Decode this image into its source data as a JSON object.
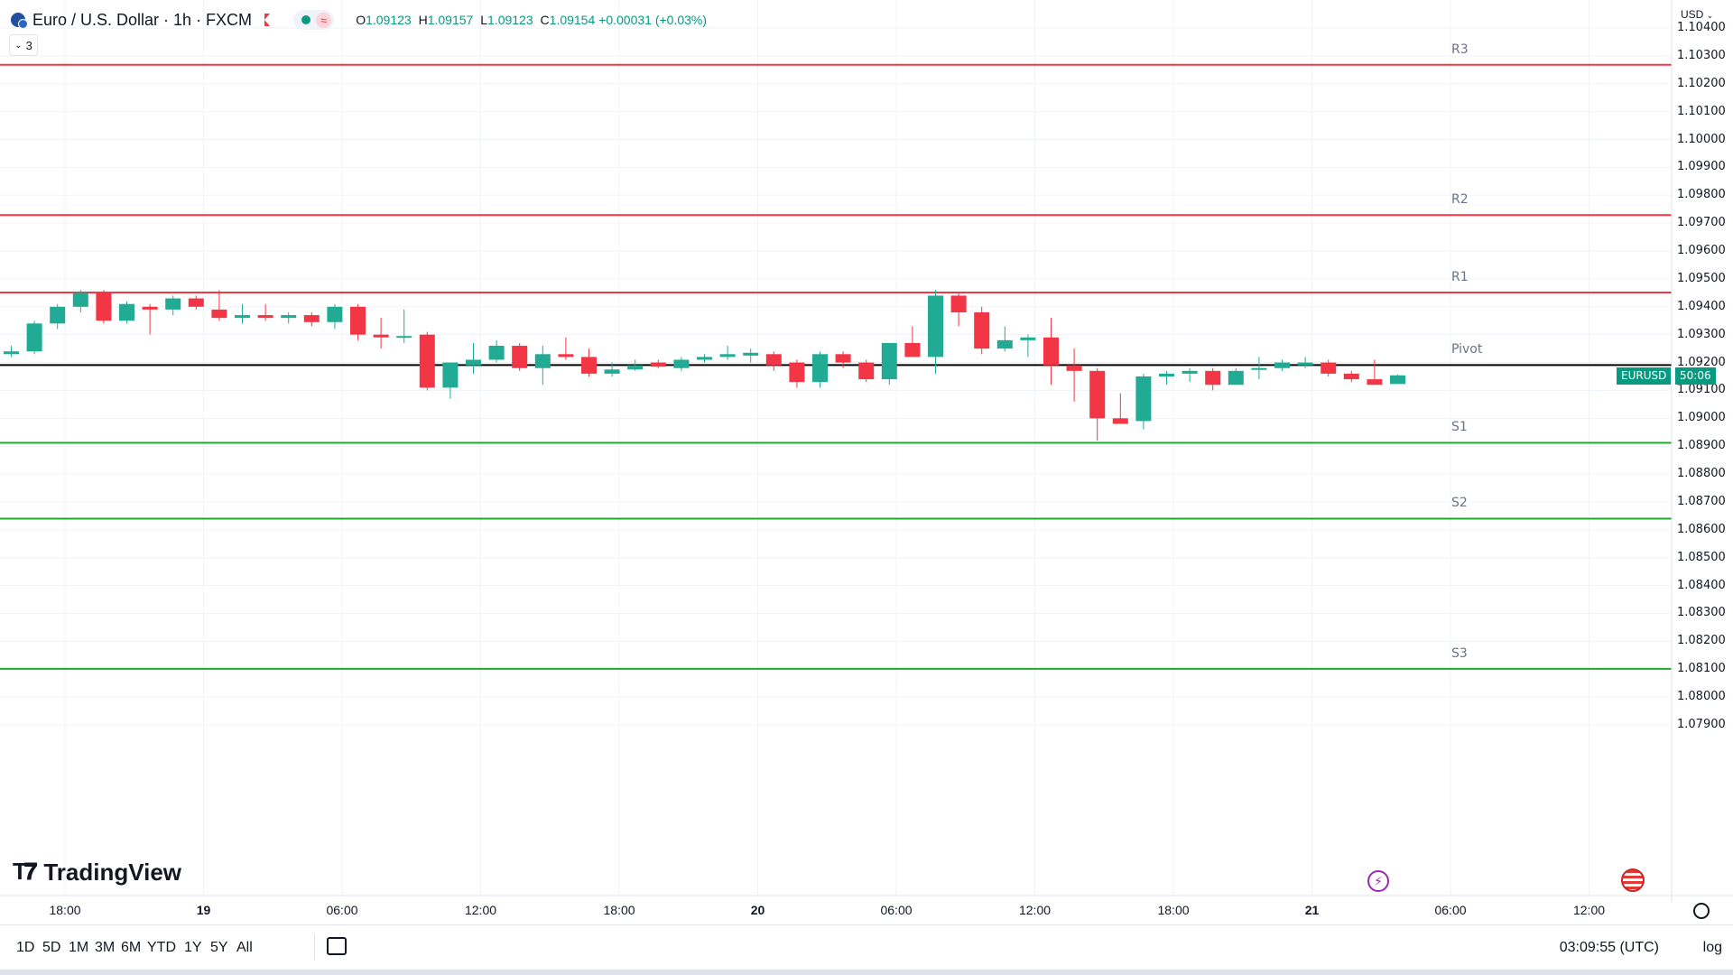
{
  "header": {
    "symbol_title": "Euro / U.S. Dollar · 1h · FXCM",
    "ohlc": {
      "open_label": "O",
      "open": "1.09123",
      "high_label": "H",
      "high": "1.09157",
      "low_label": "L",
      "low": "1.09123",
      "close_label": "C",
      "close": "1.09154",
      "change": "+0.00031 (+0.03%)"
    },
    "pill_wave": "≈",
    "indicator_toggle": "3"
  },
  "currency_label": "USD",
  "badge": {
    "symbol": "EURUSD",
    "countdown": "50:06",
    "color": "#089981"
  },
  "logo_text": "TradingView",
  "range_buttons": [
    "1D",
    "5D",
    "1M",
    "3M",
    "6M",
    "YTD",
    "1Y",
    "5Y",
    "All"
  ],
  "clock": "03:09:55 (UTC)",
  "log_label": "log",
  "colors": {
    "up": "#22ab94",
    "down": "#f23645",
    "resistance": "#f23645",
    "support": "#22ab2b",
    "pivot": "#000000"
  },
  "chart_data": {
    "type": "candlestick",
    "ylim": [
      1.079,
      1.1045
    ],
    "y_ticks": [
      "1.10400",
      "1.10300",
      "1.10200",
      "1.10100",
      "1.10000",
      "1.09900",
      "1.09800",
      "1.09700",
      "1.09600",
      "1.09500",
      "1.09400",
      "1.09300",
      "1.09200",
      "1.09100",
      "1.09000",
      "1.08900",
      "1.08800",
      "1.08700",
      "1.08600",
      "1.08500",
      "1.08400",
      "1.08300",
      "1.08200",
      "1.08100",
      "1.08000",
      "1.07900"
    ],
    "x_ticks": [
      {
        "label": "18:00",
        "bold": false
      },
      {
        "label": "19",
        "bold": true
      },
      {
        "label": "06:00",
        "bold": false
      },
      {
        "label": "12:00",
        "bold": false
      },
      {
        "label": "18:00",
        "bold": false
      },
      {
        "label": "20",
        "bold": true
      },
      {
        "label": "06:00",
        "bold": false
      },
      {
        "label": "12:00",
        "bold": false
      },
      {
        "label": "18:00",
        "bold": false
      },
      {
        "label": "21",
        "bold": true
      },
      {
        "label": "06:00",
        "bold": false
      },
      {
        "label": "12:00",
        "bold": false
      }
    ],
    "levels": [
      {
        "name": "R3",
        "value": 1.10268,
        "kind": "resistance"
      },
      {
        "name": "R2",
        "value": 1.09729,
        "kind": "resistance"
      },
      {
        "name": "R1",
        "value": 1.09451,
        "kind": "resistance"
      },
      {
        "name": "Pivot",
        "value": 1.09191,
        "kind": "pivot"
      },
      {
        "name": "S1",
        "value": 1.08912,
        "kind": "support"
      },
      {
        "name": "S2",
        "value": 1.0864,
        "kind": "support"
      },
      {
        "name": "S3",
        "value": 1.08101,
        "kind": "support"
      }
    ],
    "candles": [
      {
        "o": 1.0923,
        "h": 1.0926,
        "l": 1.0922,
        "c": 1.0924
      },
      {
        "o": 1.0924,
        "h": 1.0935,
        "l": 1.0923,
        "c": 1.0934
      },
      {
        "o": 1.0934,
        "h": 1.0941,
        "l": 1.0932,
        "c": 1.094
      },
      {
        "o": 1.094,
        "h": 1.0946,
        "l": 1.0938,
        "c": 1.0945
      },
      {
        "o": 1.0945,
        "h": 1.0946,
        "l": 1.0934,
        "c": 1.0935
      },
      {
        "o": 1.0935,
        "h": 1.0942,
        "l": 1.0934,
        "c": 1.0941
      },
      {
        "o": 1.094,
        "h": 1.0941,
        "l": 1.093,
        "c": 1.0939
      },
      {
        "o": 1.0939,
        "h": 1.0944,
        "l": 1.0937,
        "c": 1.0943
      },
      {
        "o": 1.0943,
        "h": 1.0944,
        "l": 1.0939,
        "c": 1.094
      },
      {
        "o": 1.0939,
        "h": 1.0946,
        "l": 1.0935,
        "c": 1.0936
      },
      {
        "o": 1.0936,
        "h": 1.0941,
        "l": 1.0934,
        "c": 1.0937
      },
      {
        "o": 1.0937,
        "h": 1.0941,
        "l": 1.0935,
        "c": 1.0936
      },
      {
        "o": 1.0936,
        "h": 1.0938,
        "l": 1.0934,
        "c": 1.0937
      },
      {
        "o": 1.0937,
        "h": 1.0938,
        "l": 1.0933,
        "c": 1.09345
      },
      {
        "o": 1.09345,
        "h": 1.0941,
        "l": 1.0932,
        "c": 1.094
      },
      {
        "o": 1.094,
        "h": 1.0941,
        "l": 1.0928,
        "c": 1.093
      },
      {
        "o": 1.093,
        "h": 1.0936,
        "l": 1.0925,
        "c": 1.0929
      },
      {
        "o": 1.0929,
        "h": 1.0939,
        "l": 1.0927,
        "c": 1.09295
      },
      {
        "o": 1.093,
        "h": 1.0931,
        "l": 1.091,
        "c": 1.0911
      },
      {
        "o": 1.0911,
        "h": 1.092,
        "l": 1.0907,
        "c": 1.092
      },
      {
        "o": 1.0919,
        "h": 1.0927,
        "l": 1.0916,
        "c": 1.0921
      },
      {
        "o": 1.0921,
        "h": 1.0928,
        "l": 1.092,
        "c": 1.0926
      },
      {
        "o": 1.0926,
        "h": 1.0927,
        "l": 1.0917,
        "c": 1.0918
      },
      {
        "o": 1.0918,
        "h": 1.0926,
        "l": 1.0912,
        "c": 1.0923
      },
      {
        "o": 1.0923,
        "h": 1.0929,
        "l": 1.0921,
        "c": 1.0922
      },
      {
        "o": 1.0922,
        "h": 1.0925,
        "l": 1.0915,
        "c": 1.0916
      },
      {
        "o": 1.0916,
        "h": 1.092,
        "l": 1.0915,
        "c": 1.09175
      },
      {
        "o": 1.09175,
        "h": 1.0921,
        "l": 1.0917,
        "c": 1.0919
      },
      {
        "o": 1.092,
        "h": 1.0921,
        "l": 1.0918,
        "c": 1.09185
      },
      {
        "o": 1.0918,
        "h": 1.0922,
        "l": 1.0917,
        "c": 1.0921
      },
      {
        "o": 1.0921,
        "h": 1.0923,
        "l": 1.092,
        "c": 1.0922
      },
      {
        "o": 1.0922,
        "h": 1.0926,
        "l": 1.0921,
        "c": 1.0923
      },
      {
        "o": 1.09225,
        "h": 1.0925,
        "l": 1.092,
        "c": 1.09235
      },
      {
        "o": 1.0923,
        "h": 1.0924,
        "l": 1.0917,
        "c": 1.0919
      },
      {
        "o": 1.092,
        "h": 1.0921,
        "l": 1.0911,
        "c": 1.0913
      },
      {
        "o": 1.0913,
        "h": 1.0924,
        "l": 1.0911,
        "c": 1.0923
      },
      {
        "o": 1.0923,
        "h": 1.0924,
        "l": 1.0918,
        "c": 1.092
      },
      {
        "o": 1.092,
        "h": 1.0921,
        "l": 1.0913,
        "c": 1.0914
      },
      {
        "o": 1.0914,
        "h": 1.0927,
        "l": 1.0912,
        "c": 1.0927
      },
      {
        "o": 1.0927,
        "h": 1.0933,
        "l": 1.0922,
        "c": 1.0922
      },
      {
        "o": 1.0922,
        "h": 1.0946,
        "l": 1.0916,
        "c": 1.0944
      },
      {
        "o": 1.0944,
        "h": 1.0945,
        "l": 1.0933,
        "c": 1.0938
      },
      {
        "o": 1.0938,
        "h": 1.094,
        "l": 1.0923,
        "c": 1.0925
      },
      {
        "o": 1.0925,
        "h": 1.0933,
        "l": 1.0924,
        "c": 1.0928
      },
      {
        "o": 1.0928,
        "h": 1.093,
        "l": 1.0922,
        "c": 1.0929
      },
      {
        "o": 1.0929,
        "h": 1.0936,
        "l": 1.0912,
        "c": 1.0919
      },
      {
        "o": 1.0919,
        "h": 1.0925,
        "l": 1.0906,
        "c": 1.0917
      },
      {
        "o": 1.0917,
        "h": 1.0918,
        "l": 1.0892,
        "c": 1.09
      },
      {
        "o": 1.09,
        "h": 1.0909,
        "l": 1.0899,
        "c": 1.0898
      },
      {
        "o": 1.0899,
        "h": 1.0916,
        "l": 1.0896,
        "c": 1.0915
      },
      {
        "o": 1.0915,
        "h": 1.0917,
        "l": 1.0912,
        "c": 1.0916
      },
      {
        "o": 1.0916,
        "h": 1.0918,
        "l": 1.0913,
        "c": 1.0917
      },
      {
        "o": 1.0917,
        "h": 1.0918,
        "l": 1.091,
        "c": 1.0912
      },
      {
        "o": 1.0912,
        "h": 1.0918,
        "l": 1.0912,
        "c": 1.0917
      },
      {
        "o": 1.0918,
        "h": 1.0922,
        "l": 1.0914,
        "c": 1.0918
      },
      {
        "o": 1.0918,
        "h": 1.0921,
        "l": 1.0917,
        "c": 1.092
      },
      {
        "o": 1.0919,
        "h": 1.0922,
        "l": 1.0918,
        "c": 1.092
      },
      {
        "o": 1.092,
        "h": 1.0921,
        "l": 1.0915,
        "c": 1.0916
      },
      {
        "o": 1.0916,
        "h": 1.0917,
        "l": 1.0913,
        "c": 1.0914
      },
      {
        "o": 1.0914,
        "h": 1.0921,
        "l": 1.0912,
        "c": 1.0912
      },
      {
        "o": 1.09123,
        "h": 1.09157,
        "l": 1.09123,
        "c": 1.09154
      }
    ]
  }
}
